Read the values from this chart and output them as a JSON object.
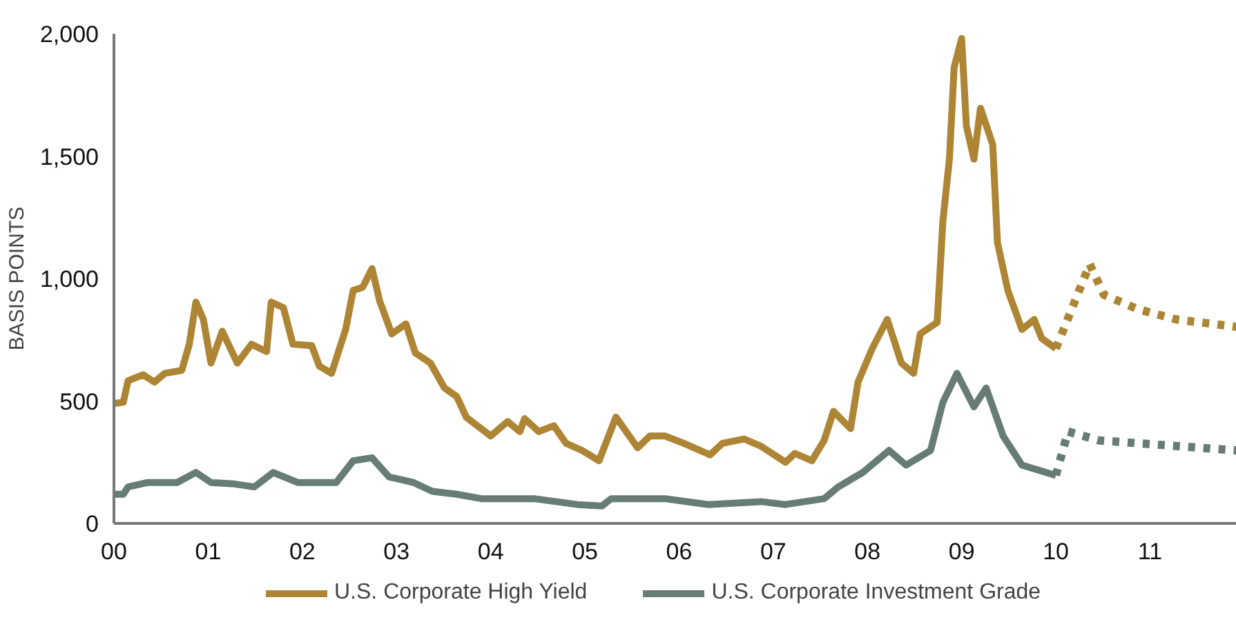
{
  "chart_data": {
    "type": "line",
    "ylabel": "BASIS POINTS",
    "xlim": [
      2000,
      2011.92
    ],
    "ylim": [
      0,
      2000
    ],
    "xticks": [
      {
        "value": 2000,
        "label": "00"
      },
      {
        "value": 2001,
        "label": "01"
      },
      {
        "value": 2002,
        "label": "02"
      },
      {
        "value": 2003,
        "label": "03"
      },
      {
        "value": 2004,
        "label": "04"
      },
      {
        "value": 2005,
        "label": "05"
      },
      {
        "value": 2006,
        "label": "06"
      },
      {
        "value": 2007,
        "label": "07"
      },
      {
        "value": 2008,
        "label": "08"
      },
      {
        "value": 2009,
        "label": "09"
      },
      {
        "value": 2010,
        "label": "10"
      },
      {
        "value": 2011,
        "label": "11"
      }
    ],
    "yticks": [
      0,
      {
        "value": 500,
        "label": "500"
      },
      {
        "value": 1000,
        "label": "1,000"
      },
      {
        "value": 1500,
        "label": "1,500"
      },
      {
        "value": 2000,
        "label": "2,000"
      }
    ],
    "grid": false,
    "legend": "bottom",
    "line_style": "solid",
    "series": [
      {
        "name": "U.S. Corporate High Yield",
        "color": "#ad8534",
        "x": [
          2000.0,
          2000.1,
          2000.15,
          2000.31,
          2000.43,
          2000.54,
          2000.72,
          2000.8,
          2000.87,
          2000.95,
          2001.03,
          2001.15,
          2001.31,
          2001.46,
          2001.62,
          2001.67,
          2001.8,
          2001.9,
          2002.1,
          2002.18,
          2002.31,
          2002.46,
          2002.54,
          2002.64,
          2002.74,
          2002.82,
          2002.95,
          2003.1,
          2003.2,
          2003.36,
          2003.51,
          2003.64,
          2003.74,
          2004.0,
          2004.18,
          2004.31,
          2004.36,
          2004.51,
          2004.67,
          2004.8,
          2004.97,
          2005.15,
          2005.33,
          2005.56,
          2005.69,
          2005.85,
          2006.05,
          2006.33,
          2006.46,
          2006.69,
          2006.87,
          2007.13,
          2007.23,
          2007.41,
          2007.54,
          2007.64,
          2007.82,
          2007.9,
          2008.05,
          2008.21,
          2008.36,
          2008.49,
          2008.56,
          2008.74,
          2008.8,
          2008.87,
          2008.92,
          2009.0,
          2009.05,
          2009.13,
          2009.2,
          2009.33,
          2009.38,
          2009.49,
          2009.64,
          2009.77,
          2009.85,
          2010.0
        ],
        "values": [
          490,
          495,
          583,
          607,
          577,
          613,
          625,
          732,
          904,
          833,
          655,
          785,
          655,
          732,
          702,
          904,
          881,
          732,
          726,
          643,
          613,
          792,
          952,
          964,
          1041,
          910,
          774,
          815,
          696,
          655,
          553,
          518,
          434,
          357,
          416,
          375,
          428,
          375,
          399,
          327,
          298,
          256,
          434,
          309,
          357,
          357,
          327,
          280,
          327,
          345,
          315,
          250,
          286,
          256,
          339,
          458,
          387,
          577,
          714,
          833,
          655,
          613,
          774,
          821,
          1232,
          1488,
          1862,
          1981,
          1624,
          1488,
          1696,
          1547,
          1148,
          952,
          792,
          833,
          756,
          714
        ]
      },
      {
        "color": "#ad8534",
        "line_style": "dotted",
        "x": [
          2010.0,
          2010.36,
          2010.51,
          2010.87,
          2011.28,
          2011.92
        ],
        "values": [
          714,
          1059,
          934,
          875,
          833,
          803
        ]
      },
      {
        "name": "U.S. Corporate Investment Grade",
        "color": "#677c75",
        "x": [
          2000.0,
          2000.1,
          2000.15,
          2000.36,
          2000.67,
          2000.87,
          2001.03,
          2001.28,
          2001.49,
          2001.69,
          2001.95,
          2002.36,
          2002.54,
          2002.74,
          2002.92,
          2003.18,
          2003.38,
          2003.64,
          2003.9,
          2004.46,
          2004.92,
          2005.18,
          2005.28,
          2005.85,
          2006.31,
          2006.87,
          2007.13,
          2007.54,
          2007.69,
          2007.95,
          2008.23,
          2008.41,
          2008.67,
          2008.8,
          2008.95,
          2009.13,
          2009.26,
          2009.44,
          2009.64,
          2010.0
        ],
        "values": [
          119,
          119,
          149,
          167,
          167,
          208,
          167,
          161,
          149,
          208,
          167,
          167,
          256,
          268,
          190,
          167,
          131,
          119,
          101,
          101,
          77,
          71,
          101,
          101,
          77,
          89,
          77,
          101,
          149,
          208,
          298,
          238,
          298,
          494,
          613,
          476,
          553,
          357,
          238,
          196
        ]
      },
      {
        "color": "#677c75",
        "line_style": "dotted",
        "x": [
          2010.0,
          2010.13,
          2010.46,
          2011.92
        ],
        "values": [
          196,
          375,
          339,
          298
        ]
      }
    ]
  }
}
